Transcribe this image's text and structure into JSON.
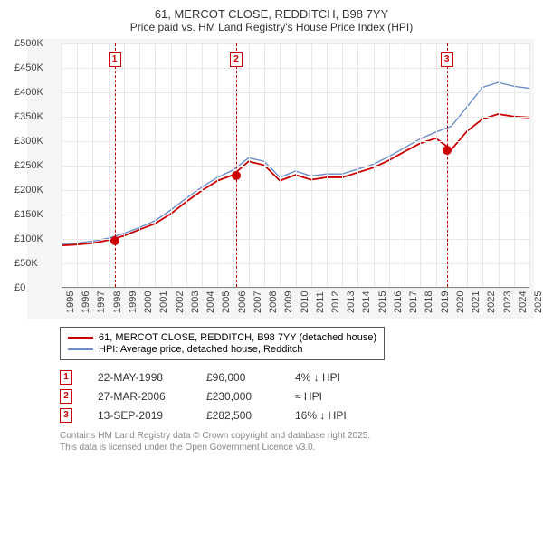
{
  "title": "61, MERCOT CLOSE, REDDITCH, B98 7YY",
  "subtitle": "Price paid vs. HM Land Registry's House Price Index (HPI)",
  "chart": {
    "type": "line",
    "x_years": [
      1995,
      1996,
      1997,
      1998,
      1999,
      2000,
      2001,
      2002,
      2003,
      2004,
      2005,
      2006,
      2007,
      2008,
      2009,
      2010,
      2011,
      2012,
      2013,
      2014,
      2015,
      2016,
      2017,
      2018,
      2019,
      2020,
      2021,
      2022,
      2023,
      2024,
      2025
    ],
    "ylim": [
      0,
      500000
    ],
    "ytick_step": 50000,
    "y_tick_labels": [
      "£0",
      "£50K",
      "£100K",
      "£150K",
      "£200K",
      "£250K",
      "£300K",
      "£350K",
      "£400K",
      "£450K",
      "£500K"
    ],
    "background_color": "#ffffff",
    "plot_background": "#f5f5f5",
    "grid_color": "#e8e8e8",
    "series": [
      {
        "name": "61, MERCOT CLOSE, REDDITCH, B98 7YY (detached house)",
        "color": "#cc0000",
        "line_width": 1.8,
        "data": [
          85,
          87,
          90,
          96,
          105,
          118,
          130,
          150,
          175,
          198,
          218,
          230,
          258,
          250,
          218,
          230,
          220,
          225,
          225,
          235,
          245,
          260,
          278,
          295,
          305,
          282,
          320,
          345,
          355,
          350,
          348
        ]
      },
      {
        "name": "HPI: Average price, detached house, Redditch",
        "color": "#6b8fc9",
        "line_width": 1.4,
        "data": [
          88,
          90,
          94,
          100,
          110,
          122,
          136,
          158,
          182,
          205,
          225,
          240,
          265,
          258,
          225,
          238,
          228,
          232,
          232,
          242,
          252,
          268,
          286,
          304,
          318,
          330,
          370,
          410,
          420,
          412,
          408
        ]
      }
    ],
    "markers": [
      {
        "label": "1",
        "year": 1998.4,
        "dot_value": 96
      },
      {
        "label": "2",
        "year": 2006.2,
        "dot_value": 230
      },
      {
        "label": "3",
        "year": 2019.7,
        "dot_value": 282
      }
    ]
  },
  "legend": {
    "rows": [
      {
        "color": "#cc0000",
        "width": 2,
        "label": "61, MERCOT CLOSE, REDDITCH, B98 7YY (detached house)"
      },
      {
        "color": "#6b8fc9",
        "width": 1.4,
        "label": "HPI: Average price, detached house, Redditch"
      }
    ]
  },
  "sales": [
    {
      "n": "1",
      "date": "22-MAY-1998",
      "price": "£96,000",
      "rel": "4% ↓ HPI"
    },
    {
      "n": "2",
      "date": "27-MAR-2006",
      "price": "£230,000",
      "rel": "≈ HPI"
    },
    {
      "n": "3",
      "date": "13-SEP-2019",
      "price": "£282,500",
      "rel": "16% ↓ HPI"
    }
  ],
  "footer": {
    "line1": "Contains HM Land Registry data © Crown copyright and database right 2025.",
    "line2": "This data is licensed under the Open Government Licence v3.0."
  }
}
